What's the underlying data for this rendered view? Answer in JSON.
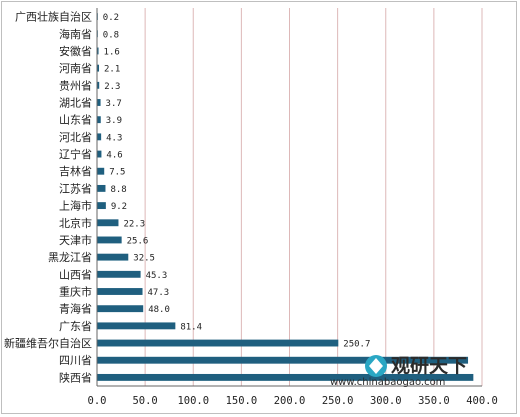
{
  "chart_data": {
    "type": "bar",
    "orientation": "horizontal",
    "categories": [
      "广西壮族自治区",
      "海南省",
      "安徽省",
      "河南省",
      "贵州省",
      "湖北省",
      "山东省",
      "河北省",
      "辽宁省",
      "吉林省",
      "江苏省",
      "上海市",
      "北京市",
      "天津市",
      "黑龙江省",
      "山西省",
      "重庆市",
      "青海省",
      "广东省",
      "新疆维吾尔自治区",
      "四川省",
      "陕西省"
    ],
    "values": [
      0.2,
      0.8,
      1.6,
      2.1,
      2.3,
      3.7,
      3.9,
      4.3,
      4.6,
      7.5,
      8.8,
      9.2,
      22.3,
      25.6,
      32.5,
      45.3,
      47.3,
      48.0,
      81.4,
      250.7,
      385.5,
      391.0
    ],
    "value_labels": [
      "0.2",
      "0.8",
      "1.6",
      "2.1",
      "2.3",
      "3.7",
      "3.9",
      "4.3",
      "4.6",
      "7.5",
      "8.8",
      "9.2",
      "22.3",
      "25.6",
      "32.5",
      "45.3",
      "47.3",
      "48.0",
      "81.4",
      "250.7",
      "",
      ""
    ],
    "xlim": [
      0,
      400
    ],
    "xticks": [
      "0.0",
      "50.0",
      "100.0",
      "150.0",
      "200.0",
      "250.0",
      "300.0",
      "350.0",
      "400.0"
    ],
    "bar_color": "#1f5f7f",
    "grid": true,
    "grid_color": "#ddb8b8",
    "legend": "none"
  },
  "watermark": {
    "brand": "观研天下",
    "url": "www.chinabaogao.com"
  }
}
